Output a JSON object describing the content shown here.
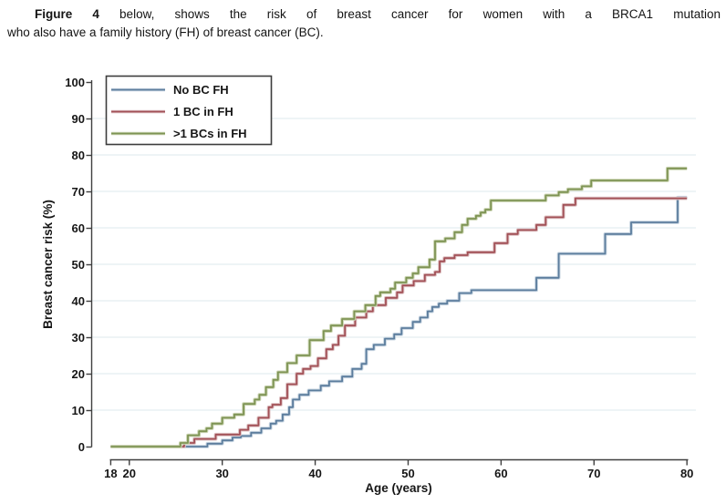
{
  "caption": {
    "figure_label": "Figure 4",
    "line1_rest": " below, shows the risk of breast cancer for women with a BRCA1 mutation",
    "line2": "who also have a family history (FH) of breast cancer (BC)."
  },
  "chart_data": {
    "type": "line",
    "subtype": "step",
    "title": "",
    "xlabel": "Age (years)",
    "ylabel": "Breast cancer risk (%)",
    "xlim": [
      18,
      80
    ],
    "ylim": [
      0,
      100
    ],
    "x_ticks": [
      18,
      20,
      30,
      40,
      50,
      60,
      70,
      80
    ],
    "y_ticks": [
      0,
      10,
      20,
      30,
      40,
      50,
      60,
      70,
      80,
      90,
      100
    ],
    "grid": "horizontal",
    "grid_values": [
      10,
      20,
      30,
      40,
      50,
      60,
      70,
      80,
      90
    ],
    "grid_color": "#e4edf1",
    "axis_color": "#3f3f3f",
    "legend_position": "top-left",
    "series": [
      {
        "name": "No BC FH",
        "color": "#5c7d9d",
        "halo": "#c9d6e2",
        "points": [
          [
            18,
            0
          ],
          [
            28.4,
            0.8
          ],
          [
            30,
            1.7
          ],
          [
            31.1,
            2.5
          ],
          [
            32,
            2.9
          ],
          [
            33.1,
            3.8
          ],
          [
            34.2,
            5
          ],
          [
            35.2,
            6.3
          ],
          [
            35.8,
            7.1
          ],
          [
            36.5,
            8.8
          ],
          [
            37.2,
            10.8
          ],
          [
            37.6,
            12.9
          ],
          [
            38.3,
            14.2
          ],
          [
            39.3,
            15.4
          ],
          [
            40.6,
            16.7
          ],
          [
            41.5,
            17.9
          ],
          [
            42.9,
            19.2
          ],
          [
            44,
            21.3
          ],
          [
            45,
            22.7
          ],
          [
            45.5,
            26.7
          ],
          [
            46.3,
            27.9
          ],
          [
            47.5,
            29.6
          ],
          [
            48.5,
            30.8
          ],
          [
            49.3,
            32.5
          ],
          [
            50.5,
            34.2
          ],
          [
            51.3,
            35.4
          ],
          [
            52.1,
            37.1
          ],
          [
            52.6,
            38.3
          ],
          [
            53.3,
            39.2
          ],
          [
            54.2,
            40
          ],
          [
            55.5,
            42.1
          ],
          [
            56.8,
            42.9
          ],
          [
            63.8,
            46.3
          ],
          [
            66.2,
            52.9
          ],
          [
            71.2,
            58.3
          ],
          [
            74,
            61.5
          ],
          [
            79,
            68.3
          ]
        ]
      },
      {
        "name": "1 BC in FH",
        "color": "#a25157",
        "halo": "#ddc0c2",
        "points": [
          [
            18,
            0
          ],
          [
            25.9,
            1
          ],
          [
            27,
            2.1
          ],
          [
            29.3,
            3.3
          ],
          [
            31.9,
            4.6
          ],
          [
            32.8,
            5.8
          ],
          [
            33.9,
            7.9
          ],
          [
            35,
            10.8
          ],
          [
            35.4,
            11.5
          ],
          [
            36.3,
            13.3
          ],
          [
            37,
            17.1
          ],
          [
            38,
            20
          ],
          [
            38.7,
            21.3
          ],
          [
            39.5,
            22.1
          ],
          [
            40.3,
            24.2
          ],
          [
            41.2,
            26.7
          ],
          [
            41.9,
            27.9
          ],
          [
            42.5,
            30.4
          ],
          [
            43.2,
            33.2
          ],
          [
            44.3,
            35.4
          ],
          [
            45.5,
            37.1
          ],
          [
            46.2,
            38.8
          ],
          [
            47.6,
            40.8
          ],
          [
            48.8,
            42.3
          ],
          [
            49.4,
            44.2
          ],
          [
            50.6,
            45.4
          ],
          [
            51.8,
            47.1
          ],
          [
            52.9,
            47.9
          ],
          [
            53.4,
            50.8
          ],
          [
            53.9,
            51.7
          ],
          [
            55,
            52.5
          ],
          [
            56.4,
            53.3
          ],
          [
            59.3,
            55.8
          ],
          [
            60.7,
            58.3
          ],
          [
            61.8,
            59.4
          ],
          [
            63.8,
            60.8
          ],
          [
            64.8,
            62.9
          ],
          [
            66.7,
            66.3
          ],
          [
            68,
            68.1
          ]
        ]
      },
      {
        "name": ">1 BCs in FH",
        "color": "#7e9454",
        "halo": "#ccd5b4",
        "points": [
          [
            18,
            0
          ],
          [
            25.5,
            1
          ],
          [
            26.3,
            3.1
          ],
          [
            27.5,
            4.2
          ],
          [
            28.3,
            5
          ],
          [
            28.9,
            6.3
          ],
          [
            30,
            7.9
          ],
          [
            31.3,
            8.8
          ],
          [
            32.3,
            11.7
          ],
          [
            33.5,
            12.9
          ],
          [
            34,
            14.2
          ],
          [
            34.7,
            16.3
          ],
          [
            35.5,
            18.3
          ],
          [
            36,
            20.4
          ],
          [
            37,
            22.9
          ],
          [
            38,
            25
          ],
          [
            39.4,
            29.2
          ],
          [
            40.9,
            31.7
          ],
          [
            41.7,
            33.2
          ],
          [
            42.9,
            35
          ],
          [
            44.2,
            37.1
          ],
          [
            45.4,
            38.8
          ],
          [
            46.5,
            41.3
          ],
          [
            47,
            42.3
          ],
          [
            48.1,
            43.3
          ],
          [
            48.6,
            45
          ],
          [
            49.8,
            46.3
          ],
          [
            50.5,
            47.5
          ],
          [
            51.1,
            49.2
          ],
          [
            52.3,
            51.3
          ],
          [
            52.9,
            56.3
          ],
          [
            54,
            57.1
          ],
          [
            55,
            58.8
          ],
          [
            55.8,
            60.8
          ],
          [
            56.4,
            62.5
          ],
          [
            57.3,
            63.3
          ],
          [
            57.8,
            64.2
          ],
          [
            58.3,
            65
          ],
          [
            58.9,
            67.5
          ],
          [
            64.8,
            68.9
          ],
          [
            66.2,
            69.8
          ],
          [
            67.2,
            70.6
          ],
          [
            68.7,
            71.4
          ],
          [
            69.7,
            73
          ],
          [
            77.9,
            76.3
          ]
        ]
      }
    ]
  }
}
